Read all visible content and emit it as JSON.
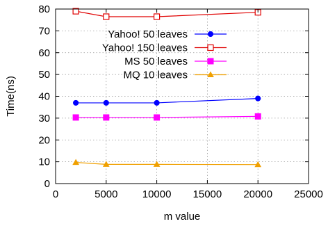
{
  "chart_data": {
    "type": "line",
    "xlabel": "m value",
    "ylabel": "Time(ns)",
    "xlim": [
      0,
      25000
    ],
    "ylim": [
      0,
      80
    ],
    "xticks": [
      0,
      5000,
      10000,
      15000,
      20000,
      25000
    ],
    "yticks": [
      0,
      10,
      20,
      30,
      40,
      50,
      60,
      70,
      80
    ],
    "grid": true,
    "legend_position": "top-right",
    "x": [
      2000,
      5000,
      10000,
      20000
    ],
    "series": [
      {
        "name": "Yahoo! 50 leaves",
        "values": [
          37,
          37,
          37,
          39
        ],
        "color": "#0000ff",
        "marker": "filled-circle"
      },
      {
        "name": "Yahoo! 150 leaves",
        "values": [
          79,
          76.5,
          76.5,
          78.5
        ],
        "color": "#e00000",
        "marker": "open-square"
      },
      {
        "name": "MS 50 leaves",
        "values": [
          30.3,
          30.3,
          30.3,
          30.8
        ],
        "color": "#ff00ff",
        "marker": "filled-square"
      },
      {
        "name": "MQ 10 leaves",
        "values": [
          9.7,
          8.8,
          8.8,
          8.7
        ],
        "color": "#f0a000",
        "marker": "filled-triangle"
      }
    ]
  }
}
